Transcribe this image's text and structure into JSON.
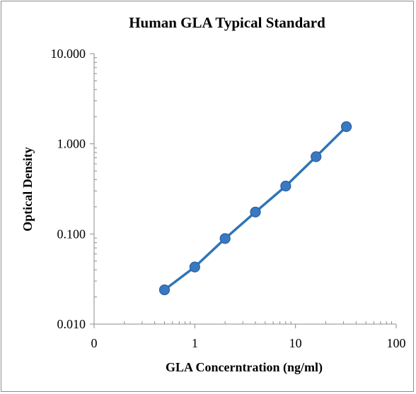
{
  "chart_data": {
    "type": "scatter",
    "title": "Human GLA Typical Standard",
    "xlabel": "GLA Concerntration (ng/ml)",
    "ylabel": "Optical Density",
    "x_scale": "log",
    "y_scale": "log",
    "xlim": [
      0.1,
      100
    ],
    "ylim": [
      0.01,
      10
    ],
    "x_tick_labels": [
      "0",
      "1",
      "10",
      "100"
    ],
    "y_tick_labels": [
      "0.010",
      "0.100",
      "1.000",
      "10.000"
    ],
    "grid": false,
    "legend": "none",
    "series": [
      {
        "color": "#2e75b6",
        "marker_color": "#3a78c2",
        "x": [
          0.5,
          1,
          2,
          4,
          8,
          16,
          32
        ],
        "y": [
          0.024,
          0.043,
          0.089,
          0.175,
          0.34,
          0.72,
          1.55
        ]
      }
    ]
  }
}
